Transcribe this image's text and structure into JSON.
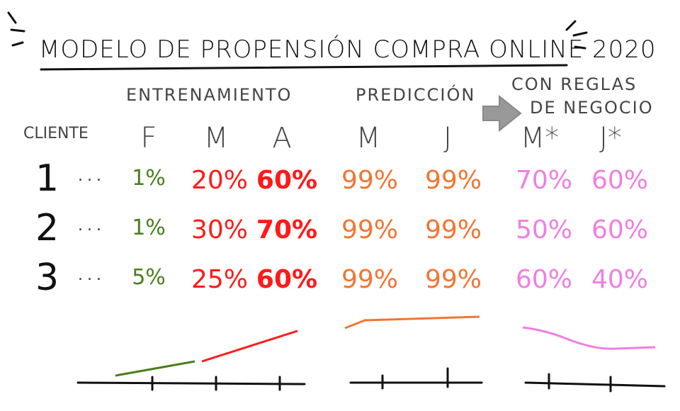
{
  "title": "MODELO DE PROPENSIÓN COMPRA ONLINE 2020",
  "sections": {
    "training": "ENTRENAMIENTO",
    "prediction": "PREDICCIÓN",
    "business_rules_line1": "CON REGLAS",
    "business_rules_line2": "DE NEGOCIO"
  },
  "client_label": "CLIENTE",
  "columns": [
    "F",
    "M",
    "A",
    "M",
    "J",
    "M*",
    "J*"
  ],
  "rows": [
    {
      "client": "1",
      "values": [
        "1%",
        "20%",
        "60%",
        "99%",
        "99%",
        "70%",
        "60%"
      ]
    },
    {
      "client": "2",
      "values": [
        "1%",
        "30%",
        "70%",
        "99%",
        "99%",
        "50%",
        "60%"
      ]
    },
    {
      "client": "3",
      "values": [
        "5%",
        "25%",
        "60%",
        "99%",
        "99%",
        "60%",
        "40%"
      ]
    }
  ],
  "colors": {
    "feb": "#4a7d1c",
    "training_red": "#ff1a1a",
    "prediction_orange": "#f27533",
    "rules_pink": "#ee80e0",
    "header_gray": "#444444",
    "arrow_gray": "#999999"
  },
  "icons": {
    "arrow": "arrow-right-icon",
    "burst": "emphasis-marks-icon"
  }
}
